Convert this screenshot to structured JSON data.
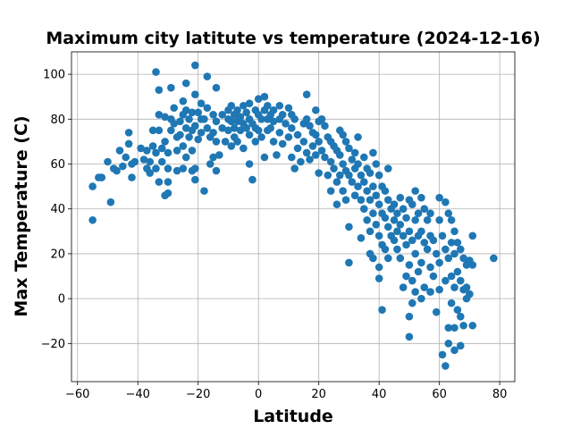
{
  "chart_data": {
    "type": "scatter",
    "title": "Maximum city latitute vs temperature (2024-12-16)",
    "xlabel": "Latitude",
    "ylabel": "Max Temperature (C)",
    "xlim": [
      -62,
      85
    ],
    "ylim": [
      -37,
      110
    ],
    "xticks": [
      -60,
      -40,
      -20,
      0,
      20,
      40,
      60,
      80
    ],
    "yticks": [
      -20,
      0,
      20,
      40,
      60,
      80,
      100
    ],
    "grid": true,
    "marker_color": "#1f77b4",
    "points": [
      [
        -55,
        35
      ],
      [
        -55,
        50
      ],
      [
        -53,
        54
      ],
      [
        -52,
        54
      ],
      [
        -50,
        61
      ],
      [
        -49,
        43
      ],
      [
        -48,
        58
      ],
      [
        -47,
        57
      ],
      [
        -46,
        66
      ],
      [
        -45,
        59
      ],
      [
        -44,
        63
      ],
      [
        -43,
        74
      ],
      [
        -43,
        69
      ],
      [
        -42,
        54
      ],
      [
        -42,
        60
      ],
      [
        -41,
        61
      ],
      [
        -39,
        67
      ],
      [
        -38,
        62
      ],
      [
        -37,
        58
      ],
      [
        -37,
        66
      ],
      [
        -36,
        56
      ],
      [
        -36,
        61
      ],
      [
        -35,
        75
      ],
      [
        -35,
        68
      ],
      [
        -34,
        101
      ],
      [
        -34,
        58
      ],
      [
        -34,
        65
      ],
      [
        -33,
        82
      ],
      [
        -33,
        93
      ],
      [
        -33,
        75
      ],
      [
        -33,
        52
      ],
      [
        -32,
        67
      ],
      [
        -32,
        61
      ],
      [
        -31,
        81
      ],
      [
        -31,
        70
      ],
      [
        -31,
        46
      ],
      [
        -30,
        65
      ],
      [
        -30,
        58
      ],
      [
        -30,
        52
      ],
      [
        -30,
        47
      ],
      [
        -29,
        94
      ],
      [
        -29,
        80
      ],
      [
        -29,
        75
      ],
      [
        -28,
        85
      ],
      [
        -28,
        78
      ],
      [
        -27,
        72
      ],
      [
        -27,
        66
      ],
      [
        -27,
        57
      ],
      [
        -26,
        79
      ],
      [
        -26,
        73
      ],
      [
        -25,
        88
      ],
      [
        -25,
        82
      ],
      [
        -25,
        68
      ],
      [
        -25,
        58
      ],
      [
        -24,
        96
      ],
      [
        -24,
        84
      ],
      [
        -24,
        76
      ],
      [
        -24,
        63
      ],
      [
        -23,
        80
      ],
      [
        -23,
        72
      ],
      [
        -22,
        83
      ],
      [
        -22,
        75
      ],
      [
        -22,
        66
      ],
      [
        -22,
        57
      ],
      [
        -21,
        104
      ],
      [
        -21,
        91
      ],
      [
        -21,
        77
      ],
      [
        -21,
        58
      ],
      [
        -21,
        53
      ],
      [
        -20,
        83
      ],
      [
        -20,
        71
      ],
      [
        -19,
        87
      ],
      [
        -19,
        80
      ],
      [
        -19,
        74
      ],
      [
        -18,
        48
      ],
      [
        -18,
        80
      ],
      [
        -17,
        99
      ],
      [
        -17,
        85
      ],
      [
        -17,
        76
      ],
      [
        -16,
        72
      ],
      [
        -16,
        60
      ],
      [
        -15,
        82
      ],
      [
        -15,
        74
      ],
      [
        -15,
        63
      ],
      [
        -14,
        94
      ],
      [
        -14,
        79
      ],
      [
        -14,
        70
      ],
      [
        -14,
        57
      ],
      [
        -13,
        64
      ],
      [
        -12,
        82
      ],
      [
        -12,
        76
      ],
      [
        -11,
        70
      ],
      [
        -10,
        84
      ],
      [
        -10,
        80
      ],
      [
        -10,
        75
      ],
      [
        -9,
        86
      ],
      [
        -9,
        79
      ],
      [
        -9,
        68
      ],
      [
        -8,
        82
      ],
      [
        -8,
        76
      ],
      [
        -8,
        72
      ],
      [
        -7,
        84
      ],
      [
        -7,
        79
      ],
      [
        -7,
        70
      ],
      [
        -6,
        81
      ],
      [
        -6,
        75
      ],
      [
        -5,
        86
      ],
      [
        -5,
        78
      ],
      [
        -5,
        67
      ],
      [
        -4,
        83
      ],
      [
        -4,
        76
      ],
      [
        -3,
        87
      ],
      [
        -3,
        80
      ],
      [
        -3,
        73
      ],
      [
        -3,
        60
      ],
      [
        -2,
        78
      ],
      [
        -2,
        53
      ],
      [
        -1,
        84
      ],
      [
        -1,
        76
      ],
      [
        -1,
        70
      ],
      [
        0,
        89
      ],
      [
        0,
        82
      ],
      [
        0,
        75
      ],
      [
        1,
        80
      ],
      [
        1,
        72
      ],
      [
        2,
        90
      ],
      [
        2,
        84
      ],
      [
        2,
        63
      ],
      [
        3,
        86
      ],
      [
        3,
        80
      ],
      [
        3,
        75
      ],
      [
        4,
        82
      ],
      [
        4,
        76
      ],
      [
        5,
        84
      ],
      [
        5,
        79
      ],
      [
        5,
        70
      ],
      [
        6,
        64
      ],
      [
        7,
        86
      ],
      [
        7,
        80
      ],
      [
        7,
        74
      ],
      [
        8,
        82
      ],
      [
        8,
        69
      ],
      [
        9,
        78
      ],
      [
        10,
        85
      ],
      [
        10,
        72
      ],
      [
        11,
        82
      ],
      [
        11,
        76
      ],
      [
        11,
        63
      ],
      [
        12,
        80
      ],
      [
        12,
        58
      ],
      [
        13,
        73
      ],
      [
        13,
        67
      ],
      [
        14,
        61
      ],
      [
        15,
        78
      ],
      [
        15,
        70
      ],
      [
        16,
        91
      ],
      [
        16,
        80
      ],
      [
        16,
        65
      ],
      [
        17,
        77
      ],
      [
        17,
        62
      ],
      [
        18,
        74
      ],
      [
        18,
        68
      ],
      [
        19,
        84
      ],
      [
        19,
        73
      ],
      [
        19,
        64
      ],
      [
        20,
        79
      ],
      [
        20,
        70
      ],
      [
        20,
        56
      ],
      [
        21,
        80
      ],
      [
        21,
        66
      ],
      [
        22,
        77
      ],
      [
        22,
        63
      ],
      [
        23,
        72
      ],
      [
        23,
        55
      ],
      [
        24,
        70
      ],
      [
        24,
        61
      ],
      [
        24,
        48
      ],
      [
        25,
        68
      ],
      [
        25,
        58
      ],
      [
        26,
        66
      ],
      [
        26,
        52
      ],
      [
        26,
        42
      ],
      [
        27,
        75
      ],
      [
        27,
        64
      ],
      [
        27,
        55
      ],
      [
        28,
        73
      ],
      [
        28,
        60
      ],
      [
        28,
        48
      ],
      [
        29,
        70
      ],
      [
        29,
        57
      ],
      [
        29,
        44
      ],
      [
        30,
        67
      ],
      [
        30,
        55
      ],
      [
        30,
        32
      ],
      [
        30,
        16
      ],
      [
        31,
        62
      ],
      [
        31,
        52
      ],
      [
        32,
        65
      ],
      [
        32,
        58
      ],
      [
        32,
        46
      ],
      [
        33,
        72
      ],
      [
        33,
        60
      ],
      [
        33,
        50
      ],
      [
        34,
        55
      ],
      [
        34,
        44
      ],
      [
        34,
        27
      ],
      [
        35,
        63
      ],
      [
        35,
        52
      ],
      [
        35,
        40
      ],
      [
        36,
        58
      ],
      [
        36,
        48
      ],
      [
        36,
        35
      ],
      [
        37,
        56
      ],
      [
        37,
        44
      ],
      [
        37,
        30
      ],
      [
        37,
        20
      ],
      [
        38,
        65
      ],
      [
        38,
        50
      ],
      [
        38,
        38
      ],
      [
        38,
        18
      ],
      [
        39,
        60
      ],
      [
        39,
        46
      ],
      [
        39,
        33
      ],
      [
        40,
        55
      ],
      [
        40,
        42
      ],
      [
        40,
        28
      ],
      [
        40,
        14
      ],
      [
        40,
        9
      ],
      [
        41,
        50
      ],
      [
        41,
        38
      ],
      [
        41,
        24
      ],
      [
        41,
        -5
      ],
      [
        42,
        48
      ],
      [
        42,
        36
      ],
      [
        42,
        22
      ],
      [
        43,
        58
      ],
      [
        43,
        44
      ],
      [
        43,
        32
      ],
      [
        43,
        18
      ],
      [
        44,
        40
      ],
      [
        44,
        28
      ],
      [
        45,
        42
      ],
      [
        45,
        35
      ],
      [
        45,
        26
      ],
      [
        46,
        38
      ],
      [
        46,
        30
      ],
      [
        46,
        22
      ],
      [
        47,
        45
      ],
      [
        47,
        33
      ],
      [
        47,
        18
      ],
      [
        48,
        40
      ],
      [
        48,
        28
      ],
      [
        48,
        5
      ],
      [
        49,
        36
      ],
      [
        49,
        24
      ],
      [
        49,
        10
      ],
      [
        50,
        44
      ],
      [
        50,
        30
      ],
      [
        50,
        15
      ],
      [
        50,
        -8
      ],
      [
        50,
        -17
      ],
      [
        51,
        42
      ],
      [
        51,
        26
      ],
      [
        51,
        8
      ],
      [
        51,
        -2
      ],
      [
        52,
        48
      ],
      [
        52,
        35
      ],
      [
        52,
        20
      ],
      [
        52,
        3
      ],
      [
        53,
        38
      ],
      [
        53,
        28
      ],
      [
        53,
        12
      ],
      [
        54,
        45
      ],
      [
        54,
        30
      ],
      [
        54,
        16
      ],
      [
        54,
        0
      ],
      [
        55,
        40
      ],
      [
        55,
        25
      ],
      [
        55,
        5
      ],
      [
        56,
        35
      ],
      [
        56,
        22
      ],
      [
        57,
        38
      ],
      [
        57,
        28
      ],
      [
        57,
        14
      ],
      [
        57,
        3
      ],
      [
        58,
        26
      ],
      [
        58,
        10
      ],
      [
        59,
        20
      ],
      [
        59,
        -6
      ],
      [
        60,
        45
      ],
      [
        60,
        35
      ],
      [
        60,
        16
      ],
      [
        60,
        4
      ],
      [
        61,
        28
      ],
      [
        61,
        -25
      ],
      [
        62,
        43
      ],
      [
        62,
        22
      ],
      [
        62,
        8
      ],
      [
        62,
        -30
      ],
      [
        63,
        38
      ],
      [
        63,
        18
      ],
      [
        63,
        -13
      ],
      [
        63,
        -20
      ],
      [
        64,
        35
      ],
      [
        64,
        25
      ],
      [
        64,
        10
      ],
      [
        64,
        -2
      ],
      [
        65,
        30
      ],
      [
        65,
        20
      ],
      [
        65,
        5
      ],
      [
        65,
        -13
      ],
      [
        65,
        -23
      ],
      [
        66,
        25
      ],
      [
        66,
        12
      ],
      [
        66,
        -5
      ],
      [
        67,
        22
      ],
      [
        67,
        8
      ],
      [
        67,
        -8
      ],
      [
        67,
        -21
      ],
      [
        68,
        18
      ],
      [
        68,
        4
      ],
      [
        68,
        -12
      ],
      [
        69,
        15
      ],
      [
        69,
        5
      ],
      [
        69,
        0
      ],
      [
        70,
        17
      ],
      [
        70,
        2
      ],
      [
        71,
        28
      ],
      [
        71,
        15
      ],
      [
        71,
        -12
      ],
      [
        78,
        18
      ]
    ]
  }
}
